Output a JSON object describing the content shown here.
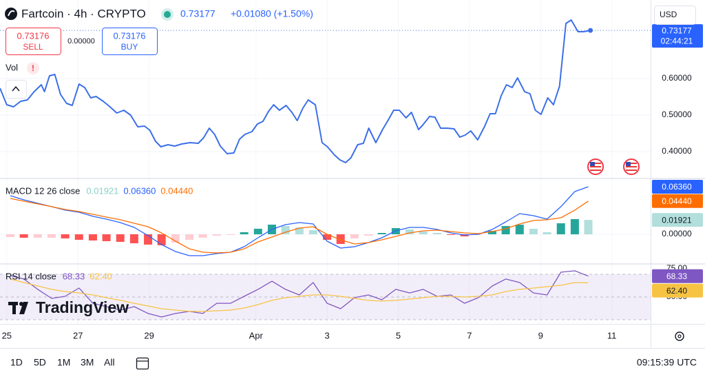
{
  "header": {
    "title": "Fartcoin · 4h · CRYPTO",
    "price": "0.73177",
    "change": "+0.01080 (+1.50%)",
    "currency": "USD"
  },
  "trade": {
    "sell_price": "0.73176",
    "sell": "SELL",
    "spread": "0.00000",
    "buy_price": "0.73176",
    "buy": "BUY"
  },
  "volume": {
    "label": "Vol",
    "alert": "!"
  },
  "watermark": "TradingView",
  "footer": {
    "ranges": [
      "1D",
      "5D",
      "1M",
      "3M",
      "All"
    ],
    "time": "09:15:39 UTC"
  },
  "chart_data": [
    {
      "type": "line",
      "color": "#3b6fe8",
      "x": [
        -0.19,
        0,
        0.19,
        0.39,
        0.58,
        0.77,
        0.97,
        1.06,
        1.2,
        1.35,
        1.51,
        1.68,
        1.84,
        2.03,
        2.19,
        2.36,
        2.51,
        2.71,
        2.9,
        3.09,
        3.29,
        3.48,
        3.68,
        3.87,
        4.02,
        4.18,
        4.33,
        4.53,
        4.72,
        4.91,
        5.15,
        5.38,
        5.53,
        5.69,
        5.84,
        6.0,
        6.19,
        6.38,
        6.54,
        6.69,
        6.89,
        7.04,
        7.2,
        7.35,
        7.5,
        7.66,
        7.85,
        8.01,
        8.16,
        8.32,
        8.47,
        8.67,
        8.86,
        9.01,
        9.21,
        9.36,
        9.52,
        9.67,
        9.86,
        10.02,
        10.17,
        10.37,
        10.56,
        10.72,
        10.87,
        11.03,
        11.22,
        11.37,
        11.57,
        11.68,
        11.88,
        12.03,
        12.19,
        12.38,
        12.57,
        12.73,
        12.88,
        13.04,
        13.23,
        13.42,
        13.58,
        13.73,
        13.89,
        14.04,
        14.2,
        14.35,
        14.55,
        14.7,
        14.85,
        15.01,
        15.2,
        15.36,
        15.53,
        15.71,
        15.86,
        16.05,
        16.21,
        16.4
      ],
      "values": [
        0.5736,
        0.5283,
        0.5226,
        0.5377,
        0.5415,
        0.5642,
        0.583,
        0.5642,
        0.6075,
        0.6113,
        0.5566,
        0.5321,
        0.5264,
        0.5849,
        0.5755,
        0.5472,
        0.5509,
        0.5377,
        0.5226,
        0.5057,
        0.5132,
        0.5,
        0.4679,
        0.4698,
        0.4585,
        0.4283,
        0.4132,
        0.4189,
        0.4151,
        0.4208,
        0.4245,
        0.4226,
        0.4377,
        0.4642,
        0.4472,
        0.4151,
        0.3943,
        0.3962,
        0.434,
        0.4472,
        0.4547,
        0.4755,
        0.483,
        0.5094,
        0.5283,
        0.5132,
        0.5264,
        0.5075,
        0.4849,
        0.5189,
        0.5415,
        0.5283,
        0.4245,
        0.4132,
        0.3906,
        0.3774,
        0.3698,
        0.383,
        0.4189,
        0.4226,
        0.4642,
        0.4245,
        0.4604,
        0.4868,
        0.5132,
        0.5132,
        0.4925,
        0.5075,
        0.4604,
        0.4717,
        0.4962,
        0.4943,
        0.4642,
        0.4642,
        0.4623,
        0.4396,
        0.4453,
        0.4566,
        0.4321,
        0.4679,
        0.5038,
        0.5038,
        0.5528,
        0.583,
        0.5755,
        0.6019,
        0.5642,
        0.5585,
        0.5132,
        0.5019,
        0.5472,
        0.5283,
        0.5792,
        0.7509,
        0.7604,
        0.7283,
        0.7283,
        0.7318
      ],
      "xlim": [
        -0.19,
        18.09
      ],
      "xticks": [
        {
          "value": 0,
          "label": "25"
        },
        {
          "value": 2,
          "label": "27"
        },
        {
          "value": 4,
          "label": "29"
        },
        {
          "value": 7,
          "label": "Apr"
        },
        {
          "value": 9,
          "label": "3"
        },
        {
          "value": 11,
          "label": "5"
        },
        {
          "value": 13,
          "label": "7"
        },
        {
          "value": 15,
          "label": "9"
        },
        {
          "value": 17,
          "label": "11"
        }
      ],
      "ylim": [
        0.3283,
        0.8151
      ],
      "yticks": [
        {
          "value": 0.4,
          "label": "0.40000"
        },
        {
          "value": 0.5,
          "label": "0.50000"
        },
        {
          "value": 0.6,
          "label": "0.60000"
        }
      ],
      "grid": true,
      "last_price_label": "0.73177",
      "countdown": "02:44:21"
    },
    {
      "type": "macd",
      "legend": "MACD 12 26 close",
      "x": [
        0.1,
        0.48,
        0.87,
        1.26,
        1.64,
        2.03,
        2.42,
        2.8,
        3.19,
        3.58,
        3.97,
        4.35,
        4.74,
        5.13,
        5.51,
        5.9,
        6.29,
        6.67,
        7.06,
        7.45,
        7.83,
        8.22,
        8.61,
        9.0,
        9.38,
        9.77,
        10.16,
        10.54,
        10.93,
        11.32,
        11.7,
        12.09,
        12.48,
        12.86,
        13.25,
        13.64,
        14.02,
        14.41,
        14.8,
        15.18,
        15.57,
        15.96,
        16.34
      ],
      "ylim": [
        -0.0387,
        0.0737
      ],
      "yticks": [
        {
          "value": 0,
          "label": "0.00000"
        }
      ],
      "series": [
        {
          "style": "histogram",
          "color": "#b2dfdb",
          "colors": [
            "#26a69a",
            "#b2dfdb",
            "#ff5252",
            "#ffcdd2"
          ],
          "last_label": "0.01921",
          "values": [
            -0.0037,
            -0.0046,
            -0.0046,
            -0.0046,
            -0.0055,
            -0.0074,
            -0.0083,
            -0.0092,
            -0.0101,
            -0.012,
            -0.0138,
            -0.0147,
            -0.0111,
            -0.0074,
            -0.0046,
            -0.0018,
            -0.0009,
            0.0028,
            0.0074,
            0.0129,
            0.0111,
            0.0092,
            0.0055,
            -0.0074,
            -0.0129,
            -0.0055,
            -0.0018,
            0.0018,
            0.0083,
            0.0065,
            0.0037,
            0.0018,
            -0.0009,
            -0.0028,
            -0.0009,
            0.0046,
            0.0111,
            0.0129,
            0.0074,
            0.0028,
            0.0147,
            0.0203,
            0.01921
          ]
        },
        {
          "style": "line",
          "color": "#2962ff",
          "last_label": "0.06360",
          "values": [
            0.0516,
            0.0461,
            0.0415,
            0.0369,
            0.0323,
            0.0295,
            0.024,
            0.0203,
            0.0157,
            0.0092,
            -0.0018,
            -0.0138,
            -0.023,
            -0.0286,
            -0.0286,
            -0.0258,
            -0.024,
            -0.0166,
            -0.0046,
            0.0065,
            0.0129,
            0.0157,
            0.0138,
            -0.0092,
            -0.0184,
            -0.0166,
            -0.0111,
            -0.0046,
            0.0046,
            0.0092,
            0.0092,
            0.0065,
            0.0018,
            -0.0009,
            0,
            0.0065,
            0.0166,
            0.0276,
            0.0249,
            0.0203,
            0.0369,
            0.0571,
            0.0636
          ]
        },
        {
          "style": "line",
          "color": "#ff6d00",
          "last_label": "0.04440",
          "values": [
            0.0479,
            0.0442,
            0.0406,
            0.0369,
            0.0332,
            0.0304,
            0.0267,
            0.023,
            0.0194,
            0.0147,
            0.0101,
            0.0018,
            -0.0092,
            -0.0194,
            -0.024,
            -0.0249,
            -0.024,
            -0.0194,
            -0.0101,
            -0.0037,
            0.0028,
            0.0083,
            0.0101,
            0,
            -0.0074,
            -0.0129,
            -0.0111,
            -0.0074,
            -0.0028,
            0.0018,
            0.0046,
            0.0055,
            0.0037,
            0.0018,
            0.0009,
            0.0037,
            0.0074,
            0.0138,
            0.0184,
            0.0194,
            0.0221,
            0.0323,
            0.0444
          ]
        }
      ]
    },
    {
      "type": "rsi",
      "legend": "RSI 14 close",
      "x": [
        0.1,
        0.48,
        0.87,
        1.26,
        1.64,
        2.03,
        2.42,
        2.8,
        3.19,
        3.58,
        3.97,
        4.35,
        4.74,
        5.13,
        5.51,
        5.9,
        6.29,
        6.67,
        7.06,
        7.45,
        7.83,
        8.22,
        8.61,
        9.0,
        9.38,
        9.77,
        10.16,
        10.54,
        10.93,
        11.32,
        11.7,
        12.09,
        12.48,
        12.86,
        13.25,
        13.64,
        14.02,
        14.41,
        14.8,
        15.18,
        15.57,
        15.96,
        16.34
      ],
      "ylim": [
        26.36,
        78.48
      ],
      "yticks": [
        {
          "value": 75,
          "label": "75.00"
        },
        {
          "value": 50,
          "label": "50.00"
        }
      ],
      "band": [
        30,
        70
      ],
      "levels": [
        70,
        50,
        30
      ],
      "band_color": "#7e57c2",
      "series": [
        {
          "color": "#7e57c2",
          "last_label": "68.33",
          "values": [
            68.8,
            65.8,
            56.7,
            48.8,
            50.6,
            57.9,
            44.5,
            41.5,
            38.5,
            41.5,
            35.5,
            32.4,
            35.5,
            37.3,
            35.5,
            44.5,
            44.5,
            50.6,
            56.7,
            63.9,
            56.7,
            51.8,
            62.7,
            44.5,
            39.7,
            49.4,
            51.8,
            47.6,
            56.7,
            53.6,
            56.7,
            50.6,
            51.8,
            44.5,
            49.4,
            59.7,
            65.8,
            62.7,
            53.6,
            51.8,
            71.8,
            73.0,
            68.33
          ]
        },
        {
          "color": "#f7c343",
          "last_label": "62.40",
          "values": [
            65.8,
            62.7,
            59.7,
            56.7,
            54.8,
            53.6,
            51.8,
            49.4,
            47.0,
            44.5,
            42.1,
            39.7,
            38.5,
            37.3,
            37.3,
            37.9,
            38.5,
            40.3,
            43.3,
            47.0,
            49.4,
            50.6,
            51.8,
            51.8,
            50.6,
            48.8,
            47.0,
            46.4,
            47.0,
            48.2,
            49.4,
            50.6,
            50.6,
            50.0,
            50.6,
            51.8,
            54.8,
            56.7,
            57.9,
            59.1,
            60.3,
            62.7,
            62.4
          ]
        }
      ]
    }
  ]
}
